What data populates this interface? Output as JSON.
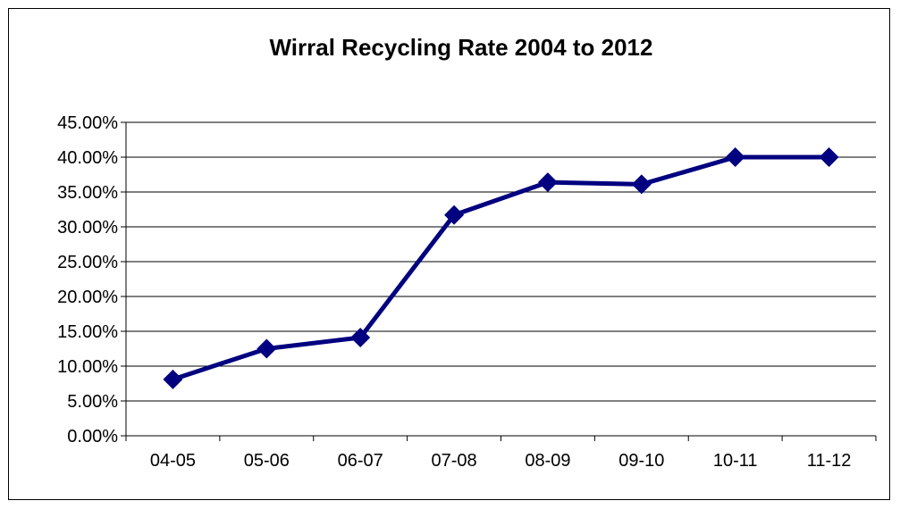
{
  "chart_data": {
    "type": "line",
    "title": "Wirral Recycling Rate 2004 to 2012",
    "xlabel": "",
    "ylabel": "",
    "categories": [
      "04-05",
      "05-06",
      "06-07",
      "07-08",
      "08-09",
      "09-10",
      "10-11",
      "11-12"
    ],
    "series": [
      {
        "values": [
          0.081,
          0.125,
          0.141,
          0.317,
          0.364,
          0.361,
          0.4,
          0.4
        ]
      }
    ],
    "ylim": [
      0,
      0.45
    ],
    "yticks": [
      0,
      0.05,
      0.1,
      0.15,
      0.2,
      0.25,
      0.3,
      0.35,
      0.4,
      0.45
    ],
    "ytick_labels": [
      "0.00%",
      "5.00%",
      "10.00%",
      "15.00%",
      "20.00%",
      "25.00%",
      "30.00%",
      "35.00%",
      "40.00%",
      "45.00%"
    ],
    "grid": true,
    "legend": "none",
    "colors": {
      "line": "#000080",
      "marker": "#000080",
      "grid": "#000000",
      "axis": "#000000"
    }
  }
}
